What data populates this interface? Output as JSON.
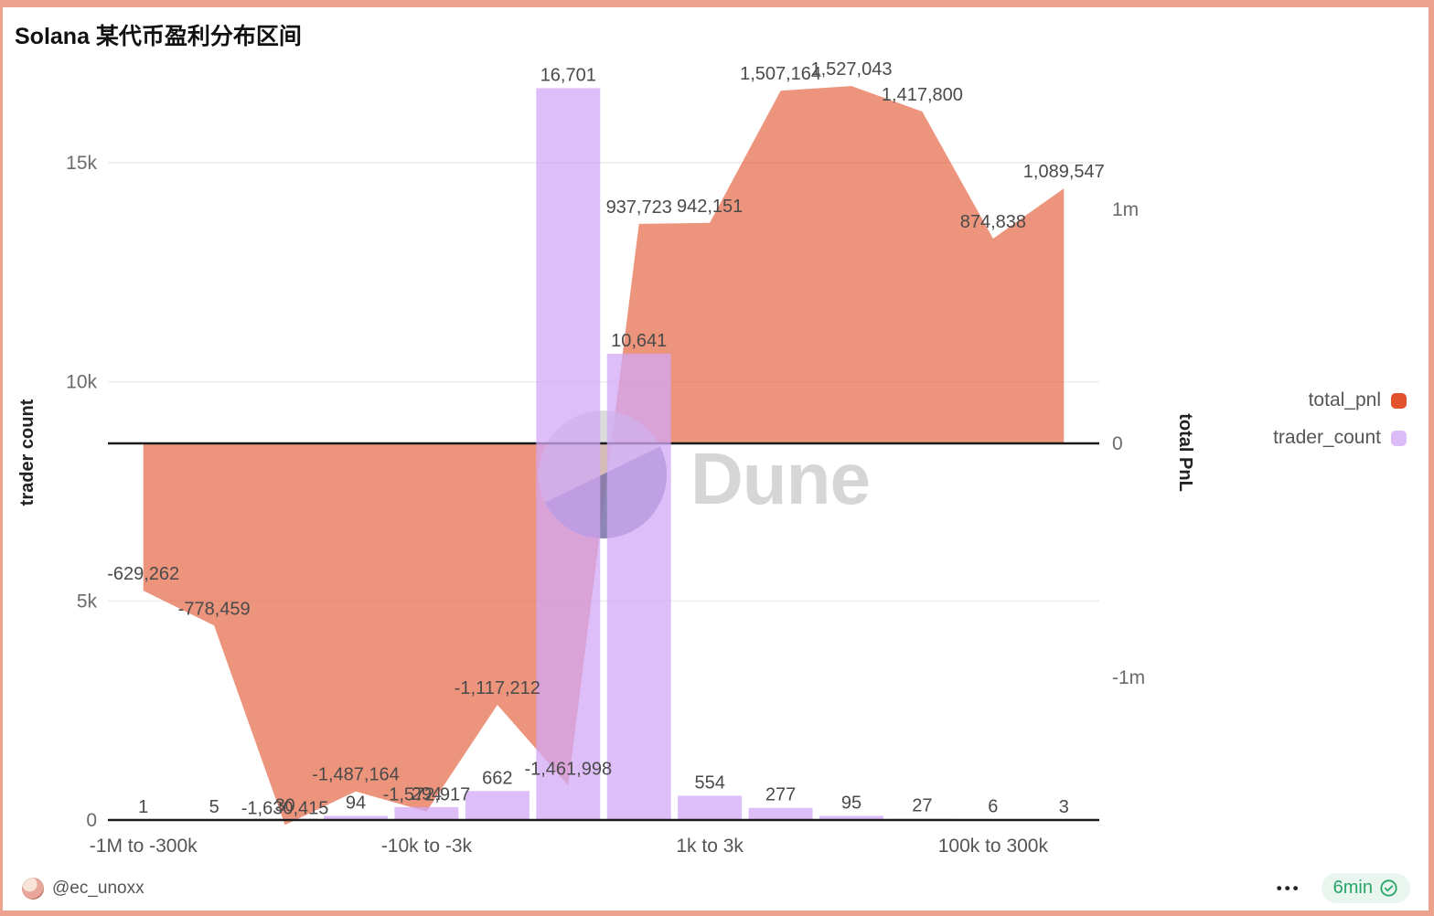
{
  "title": "Solana 某代币盈利分布区间",
  "watermark": {
    "brand": "Dune"
  },
  "legend": {
    "items": [
      {
        "label": "total_pnl",
        "color": "#e2532d"
      },
      {
        "label": "trader_count",
        "color": "#dcbcf8"
      }
    ]
  },
  "footer": {
    "author_handle": "@ec_unoxx",
    "more_menu": "•••",
    "freshness_label": "6min"
  },
  "colors": {
    "area_fill": "#e2532d",
    "bar_fill": "#d2a8f6",
    "grid": "#ececec",
    "axis_line": "#1a1a1a",
    "data_label": "#4a4a4a",
    "tick_label": "#6b6b6b",
    "x_tick_label": "#555555",
    "axis_title": "#222222",
    "page_border": "#eda28d",
    "watermark_gray": "#cccccc",
    "watermark_dark": "#7369a8",
    "watermark_text": "#d2d2d2",
    "freshness_green": "#27a567"
  },
  "chart_data": {
    "type": "combo",
    "x_tick_labels": [
      {
        "index": 0,
        "label": "-1M to -300k"
      },
      {
        "index": 4,
        "label": "-10k to -3k"
      },
      {
        "index": 8,
        "label": "1k to 3k"
      },
      {
        "index": 12,
        "label": "100k to 300k"
      }
    ],
    "series": [
      {
        "name": "total_pnl",
        "type": "area",
        "y_axis": "right",
        "values": [
          -629262,
          -778459,
          -1630415,
          -1487164,
          -1572917,
          -1117212,
          -1461998,
          937723,
          942151,
          1507164,
          1527043,
          1417800,
          874838,
          1089547
        ],
        "labels": [
          "-629,262",
          "-778,459",
          "-1,630,415",
          "-1,487,164",
          "-1,572,917",
          "-1,117,212",
          "-1,461,998",
          "937,723",
          "942,151",
          "1,507,164",
          "1,527,043",
          "1,417,800",
          "874,838",
          "1,089,547"
        ]
      },
      {
        "name": "trader_count",
        "type": "bar",
        "y_axis": "left",
        "values": [
          1,
          5,
          30,
          94,
          294,
          662,
          16701,
          10641,
          554,
          277,
          95,
          27,
          6,
          3
        ],
        "labels": [
          "1",
          "5",
          "30",
          "94",
          "294",
          "662",
          "16,701",
          "10,641",
          "554",
          "277",
          "95",
          "27",
          "6",
          "3"
        ]
      }
    ],
    "left_axis": {
      "title": "trader count",
      "range": [
        0,
        15000
      ],
      "ticks": [
        {
          "value": 0,
          "label": "0"
        },
        {
          "value": 5000,
          "label": "5k"
        },
        {
          "value": 10000,
          "label": "10k"
        },
        {
          "value": 15000,
          "label": "15k"
        }
      ]
    },
    "right_axis": {
      "title": "total PnL",
      "ticks": [
        {
          "value": 1000000,
          "label": "1m"
        },
        {
          "value": 0,
          "label": "0"
        },
        {
          "value": -1000000,
          "label": "-1m"
        }
      ]
    },
    "grid": true,
    "legend_position": "right"
  }
}
